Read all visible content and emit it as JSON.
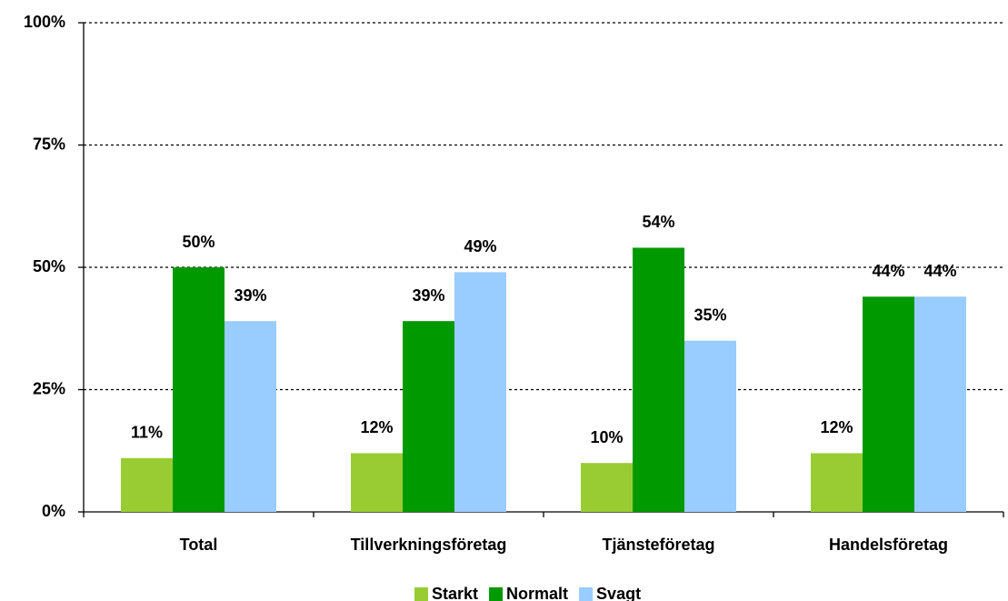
{
  "chart_data": {
    "type": "bar",
    "categories": [
      "Total",
      "Tillverkningsföretag",
      "Tjänsteföretag",
      "Handelsföretag"
    ],
    "series": [
      {
        "name": "Starkt",
        "color": "#99cc33",
        "values": [
          11,
          12,
          10,
          12
        ],
        "value_labels": [
          "11%",
          "12%",
          "10%",
          "12%"
        ]
      },
      {
        "name": "Normalt",
        "color": "#009900",
        "values": [
          50,
          39,
          54,
          44
        ],
        "value_labels": [
          "50%",
          "39%",
          "54%",
          "44%"
        ]
      },
      {
        "name": "Svagt",
        "color": "#99ccff",
        "values": [
          39,
          49,
          35,
          44
        ],
        "value_labels": [
          "39%",
          "49%",
          "35%",
          "44%"
        ]
      }
    ],
    "ylim": [
      0,
      100
    ],
    "yticks": [
      {
        "value": 0,
        "label": "0%"
      },
      {
        "value": 25,
        "label": "25%"
      },
      {
        "value": 50,
        "label": "50%"
      },
      {
        "value": 75,
        "label": "75%"
      },
      {
        "value": 100,
        "label": "100%"
      }
    ],
    "grid": true,
    "legend": "bottom"
  }
}
